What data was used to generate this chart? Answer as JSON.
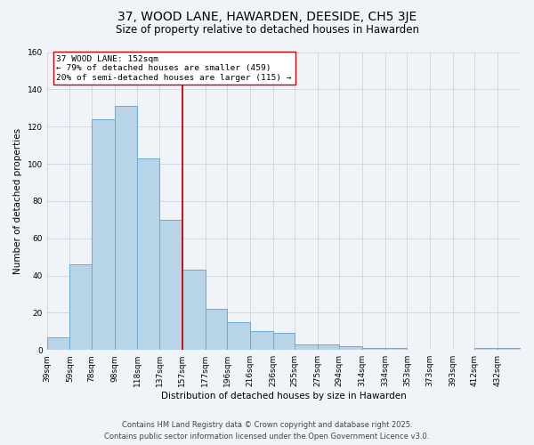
{
  "title": "37, WOOD LANE, HAWARDEN, DEESIDE, CH5 3JE",
  "subtitle": "Size of property relative to detached houses in Hawarden",
  "xlabel": "Distribution of detached houses by size in Hawarden",
  "ylabel": "Number of detached properties",
  "bin_labels": [
    "39sqm",
    "59sqm",
    "78sqm",
    "98sqm",
    "118sqm",
    "137sqm",
    "157sqm",
    "177sqm",
    "196sqm",
    "216sqm",
    "236sqm",
    "255sqm",
    "275sqm",
    "294sqm",
    "314sqm",
    "334sqm",
    "353sqm",
    "373sqm",
    "393sqm",
    "412sqm",
    "432sqm"
  ],
  "bin_edges": [
    39,
    59,
    78,
    98,
    118,
    137,
    157,
    177,
    196,
    216,
    236,
    255,
    275,
    294,
    314,
    334,
    353,
    373,
    393,
    412,
    432
  ],
  "bar_heights": [
    7,
    46,
    124,
    131,
    103,
    70,
    43,
    22,
    15,
    10,
    9,
    3,
    3,
    2,
    1,
    1,
    0,
    0,
    0,
    1,
    1
  ],
  "bar_color": "#b8d4e8",
  "bar_edgecolor": "#6aaad4",
  "vline_x": 157,
  "vline_color": "#cc0000",
  "annotation_title": "37 WOOD LANE: 152sqm",
  "annotation_line1": "← 79% of detached houses are smaller (459)",
  "annotation_line2": "20% of semi-detached houses are larger (115) →",
  "ylim": [
    0,
    160
  ],
  "yticks": [
    0,
    20,
    40,
    60,
    80,
    100,
    120,
    140,
    160
  ],
  "footer_line1": "Contains HM Land Registry data © Crown copyright and database right 2025.",
  "footer_line2": "Contains public sector information licensed under the Open Government Licence v3.0.",
  "background_color": "#f0f4f8",
  "grid_color": "#c8d4df",
  "title_fontsize": 10,
  "subtitle_fontsize": 8.5,
  "axis_label_fontsize": 7.5,
  "tick_fontsize": 6.5,
  "footer_fontsize": 6
}
